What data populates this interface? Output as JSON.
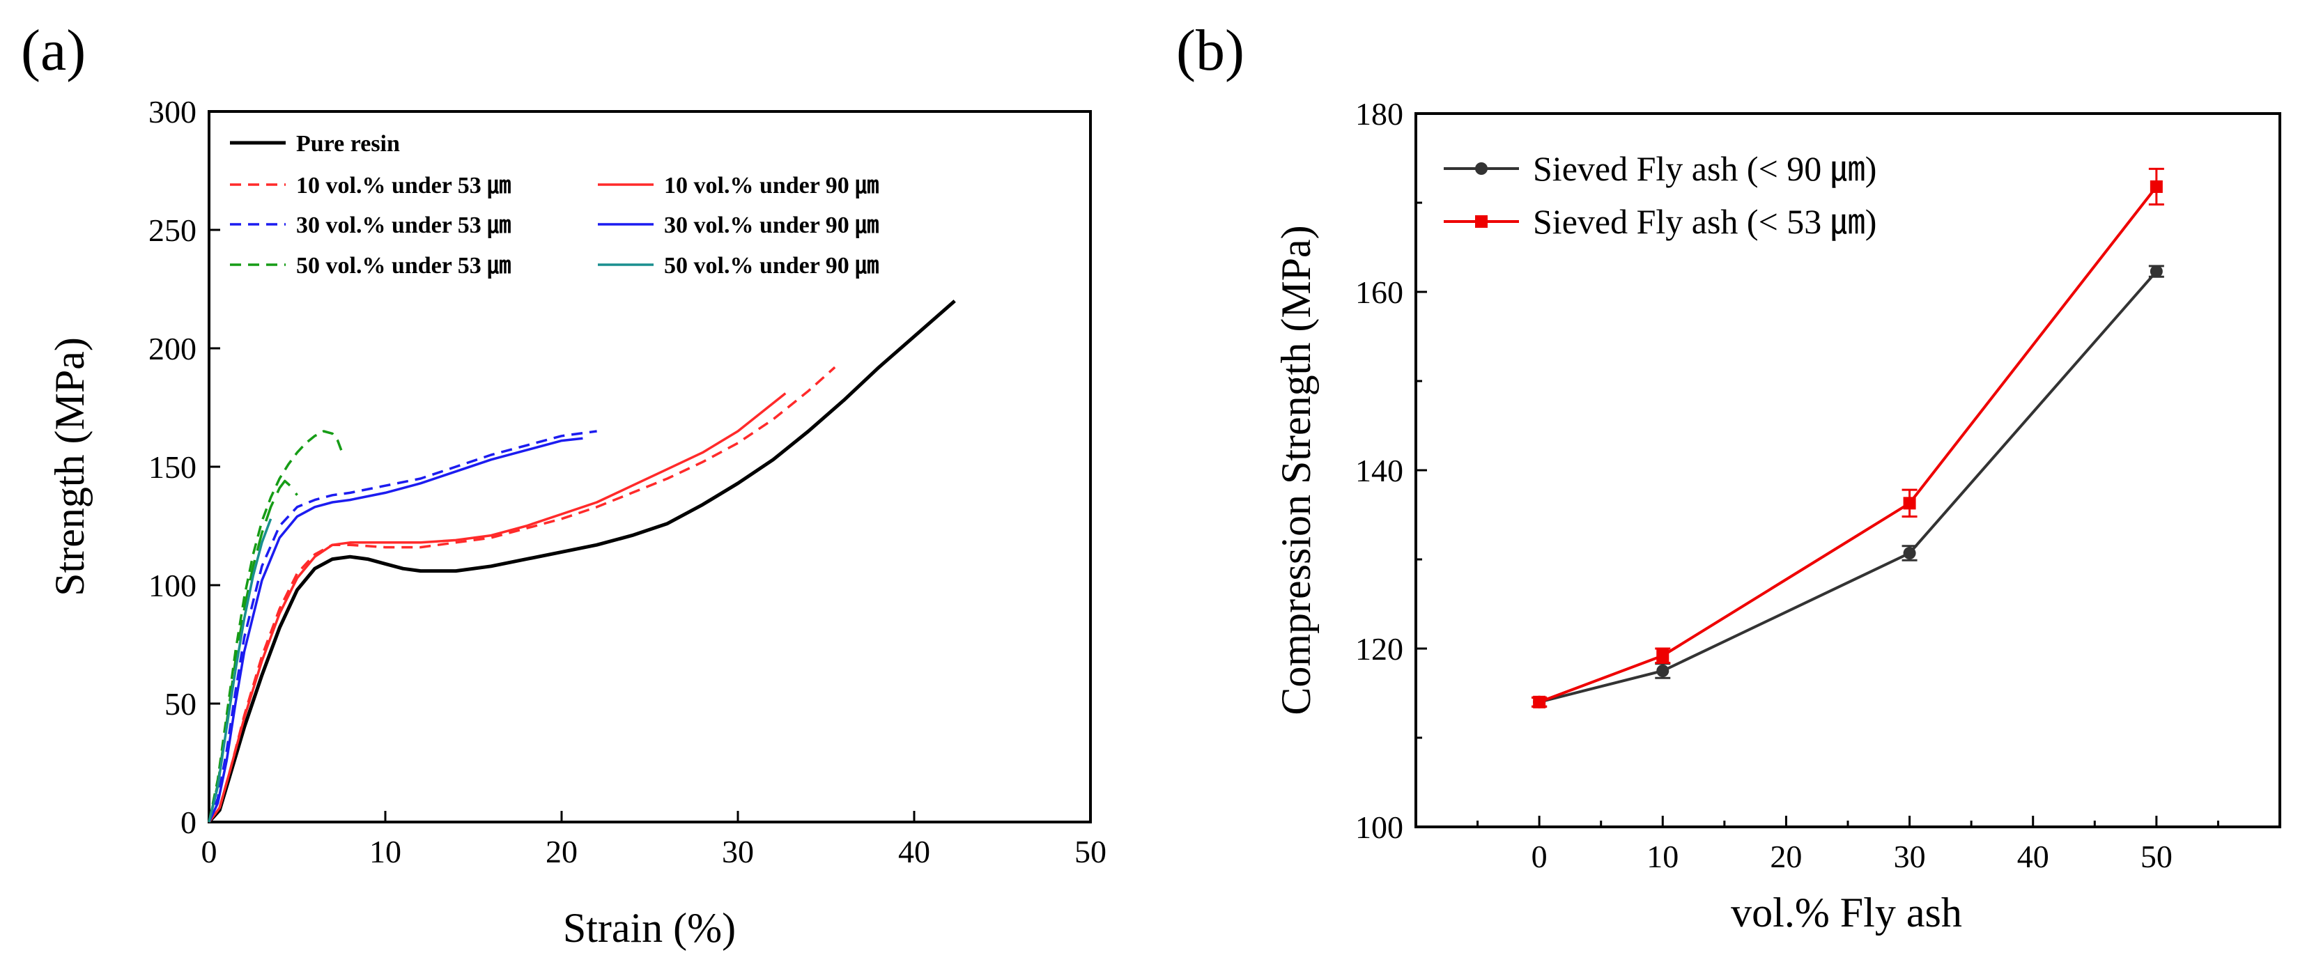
{
  "panels": [
    {
      "label": "(a)"
    },
    {
      "label": "(b)"
    }
  ],
  "chart_data": [
    {
      "type": "line",
      "xlabel": "Strain (%)",
      "ylabel": "Strength (MPa)",
      "xlim": [
        0,
        50
      ],
      "ylim": [
        0,
        300
      ],
      "xticks": [
        0,
        10,
        20,
        30,
        40,
        50
      ],
      "yticks": [
        0,
        50,
        100,
        150,
        200,
        250,
        300
      ],
      "legend_position": "top-left, two columns",
      "grid": false,
      "series": [
        {
          "name": "Pure resin",
          "color": "#000000",
          "dash": "solid",
          "x": [
            0,
            0.6,
            1.2,
            2,
            3,
            4,
            5,
            6,
            7,
            8,
            9,
            10,
            11,
            12,
            14,
            16,
            18,
            20,
            22,
            24,
            26,
            28,
            30,
            32,
            34,
            36,
            38,
            40,
            42.3
          ],
          "y": [
            0,
            5,
            20,
            40,
            62,
            82,
            98,
            107,
            111,
            112,
            111,
            109,
            107,
            106,
            106,
            108,
            111,
            114,
            117,
            121,
            126,
            134,
            143,
            153,
            165,
            178,
            192,
            205,
            220
          ]
        },
        {
          "name": "10 vol.% under 53 ㎛",
          "color": "#ff2a2a",
          "dash": "short",
          "x": [
            0,
            0.6,
            1.2,
            2,
            3,
            4,
            5,
            6,
            7,
            8,
            10,
            12,
            14,
            16,
            18,
            20,
            22,
            24,
            26,
            28,
            30,
            32,
            34,
            35.5
          ],
          "y": [
            0,
            6,
            22,
            45,
            70,
            90,
            105,
            113,
            117,
            117,
            116,
            116,
            118,
            120,
            124,
            128,
            133,
            139,
            145,
            152,
            160,
            170,
            182,
            192
          ]
        },
        {
          "name": "10 vol.% under 90 ㎛",
          "color": "#ff2a2a",
          "dash": "solid",
          "x": [
            0,
            0.6,
            1.2,
            2,
            3,
            4,
            5,
            6,
            7,
            8,
            10,
            12,
            14,
            16,
            18,
            20,
            22,
            24,
            26,
            28,
            30,
            32.7
          ],
          "y": [
            0,
            6,
            22,
            44,
            68,
            88,
            103,
            112,
            117,
            118,
            118,
            118,
            119,
            121,
            125,
            130,
            135,
            142,
            149,
            156,
            165,
            181
          ]
        },
        {
          "name": "30 vol.% under 53 ㎛",
          "color": "#1c1cf0",
          "dash": "short",
          "x": [
            0,
            0.5,
            1,
            1.5,
            2,
            3,
            4,
            5,
            6,
            7,
            8,
            10,
            12,
            14,
            16,
            18,
            20,
            22
          ],
          "y": [
            0,
            10,
            30,
            55,
            78,
            108,
            125,
            133,
            136,
            138,
            139,
            142,
            145,
            150,
            155,
            159,
            163,
            165
          ]
        },
        {
          "name": "30 vol.% under 90 ㎛",
          "color": "#1c1cf0",
          "dash": "solid",
          "x": [
            0,
            0.5,
            1,
            1.5,
            2,
            3,
            4,
            5,
            6,
            7,
            8,
            10,
            12,
            14,
            16,
            18,
            20,
            21.2
          ],
          "y": [
            0,
            8,
            26,
            50,
            72,
            102,
            120,
            129,
            133,
            135,
            136,
            139,
            143,
            148,
            153,
            157,
            161,
            162
          ]
        },
        {
          "name": "50 vol.% under 53 ㎛",
          "color": "#169c16",
          "dash": "short",
          "x": [
            0,
            0.5,
            1,
            1.5,
            2,
            2.5,
            3,
            3.5,
            4,
            4.5,
            5,
            5.5,
            6,
            6.5,
            7,
            7.3,
            7.5
          ],
          "y": [
            0,
            18,
            45,
            72,
            95,
            113,
            127,
            137,
            145,
            151,
            156,
            160,
            163,
            165,
            164,
            161,
            157
          ]
        },
        {
          "name": "",
          "color": "#169c16",
          "dash": "long",
          "x": [
            0,
            0.5,
            1,
            1.5,
            2,
            2.5,
            3,
            3.5,
            4,
            4.3,
            4.6,
            5
          ],
          "y": [
            0,
            16,
            42,
            68,
            90,
            108,
            122,
            133,
            141,
            144,
            142,
            138
          ]
        },
        {
          "name": "50 vol.% under 90 ㎛",
          "color": "#1a8f8f",
          "dash": "solid",
          "x": [
            0,
            0.5,
            1,
            1.5,
            2,
            2.5,
            3,
            3.5
          ],
          "y": [
            0,
            15,
            40,
            64,
            86,
            104,
            118,
            128
          ]
        }
      ]
    },
    {
      "type": "line",
      "xlabel": "vol.% Fly ash",
      "ylabel": "Compression Strength (MPa)",
      "xlim": [
        -10,
        60
      ],
      "ylim": [
        100,
        180
      ],
      "xticks": [
        0,
        10,
        20,
        30,
        40,
        50
      ],
      "yticks": [
        100,
        120,
        140,
        160,
        180
      ],
      "legend_position": "top-left",
      "grid": false,
      "series": [
        {
          "name": "Sieved Fly ash (< 90 ㎛)",
          "color": "#333333",
          "marker": "circle",
          "x": [
            0,
            10,
            30,
            50
          ],
          "y": [
            114,
            117.5,
            130.7,
            162.3
          ],
          "err": [
            0.5,
            0.8,
            0.8,
            0.6
          ]
        },
        {
          "name": "Sieved Fly ash (< 53 ㎛)",
          "color": "#ee0000",
          "marker": "square",
          "x": [
            0,
            10,
            30,
            50
          ],
          "y": [
            114,
            119.2,
            136.3,
            171.8
          ],
          "err": [
            0.5,
            0.8,
            1.5,
            2.0
          ]
        }
      ]
    }
  ]
}
